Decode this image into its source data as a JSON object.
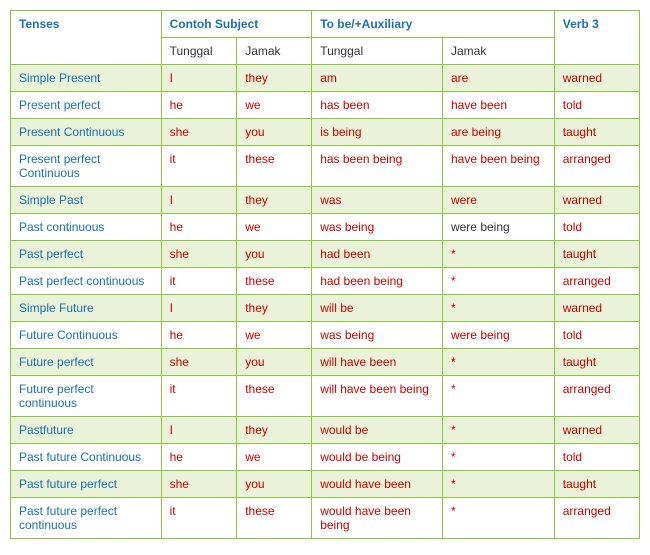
{
  "headers": {
    "tenses": "Tenses",
    "subject": "Contoh Subject",
    "auxiliary": "To be/+Auxiliary",
    "verb3": "Verb 3",
    "tunggal": "Tunggal",
    "jamak": "Jamak"
  },
  "rows": [
    {
      "tense": "Simple Present",
      "sub1": "I",
      "sub2": "they",
      "aux1": "am",
      "aux2": "are",
      "aux2_red": true,
      "verb": "warned"
    },
    {
      "tense": "Present perfect",
      "sub1": "he",
      "sub2": "we",
      "aux1": "has been",
      "aux2": "have been",
      "aux2_red": true,
      "verb": "told"
    },
    {
      "tense": "Present Continuous",
      "sub1": "she",
      "sub2": "you",
      "aux1": "is being",
      "aux2": "are being",
      "aux2_red": true,
      "verb": "taught"
    },
    {
      "tense": "Present perfect Continuous",
      "sub1": "it",
      "sub2": "these",
      "aux1": "has been being",
      "aux2": "have been being",
      "aux2_red": true,
      "verb": "arranged"
    },
    {
      "tense": "Simple Past",
      "sub1": "I",
      "sub2": "they",
      "aux1": "was",
      "aux2": "were",
      "aux2_red": true,
      "verb": "warned"
    },
    {
      "tense": "Past continuous",
      "sub1": "he",
      "sub2": "we",
      "aux1": "was being",
      "aux2": "were being",
      "aux2_red": false,
      "verb": "told"
    },
    {
      "tense": "Past perfect",
      "sub1": "she",
      "sub2": "you",
      "aux1": "had been",
      "aux2": "*",
      "aux2_red": true,
      "verb": "taught"
    },
    {
      "tense": "Past perfect continuous",
      "sub1": "it",
      "sub2": "these",
      "aux1": "had been being",
      "aux2": "*",
      "aux2_red": true,
      "verb": "arranged"
    },
    {
      "tense": "Simple Future",
      "sub1": "I",
      "sub2": "they",
      "aux1": "will be",
      "aux2": "*",
      "aux2_red": true,
      "verb": "warned"
    },
    {
      "tense": "Future Continuous",
      "sub1": "he",
      "sub2": "we",
      "aux1": "was being",
      "aux2": "were being",
      "aux2_red": true,
      "verb": "told"
    },
    {
      "tense": "Future perfect",
      "sub1": "she",
      "sub2": "you",
      "aux1": "will have been",
      "aux2": "*",
      "aux2_red": true,
      "verb": "taught"
    },
    {
      "tense": "Future perfect continuous",
      "sub1": "it",
      "sub2": "these",
      "aux1": "will have been being",
      "aux2": "*",
      "aux2_red": true,
      "verb": "arranged"
    },
    {
      "tense": "Pastfuture",
      "sub1": "I",
      "sub2": "they",
      "aux1": "would be",
      "aux2": "*",
      "aux2_red": true,
      "verb": "warned"
    },
    {
      "tense": "Past future Continuous",
      "sub1": "he",
      "sub2": "we",
      "aux1": "would be being",
      "aux2": "*",
      "aux2_red": true,
      "verb": "told"
    },
    {
      "tense": "Past future perfect",
      "sub1": "she",
      "sub2": "you",
      "aux1": "would have been",
      "aux2": "*",
      "aux2_red": true,
      "verb": "taught"
    },
    {
      "tense": "Past future perfect continuous",
      "sub1": "it",
      "sub2": "these",
      "aux1": "would have been being",
      "aux2": "*",
      "aux2_red": true,
      "verb": "arranged"
    }
  ]
}
